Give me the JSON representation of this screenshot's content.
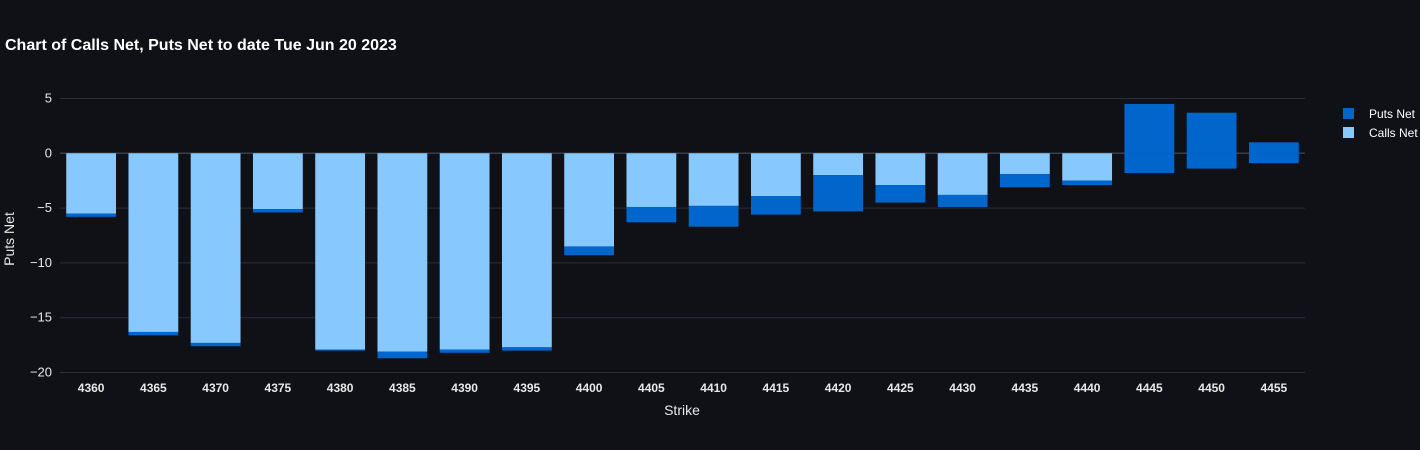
{
  "chart_data": {
    "type": "bar",
    "barmode": "stacked",
    "title": "Chart of Calls Net, Puts Net to date Tue Jun 20 2023",
    "xlabel": "Strike",
    "ylabel": "Puts Net",
    "ylim": [
      -20.5,
      6.5
    ],
    "yticks": [
      5,
      0,
      -5,
      -10,
      -15,
      -20
    ],
    "ytick_labels": [
      "5",
      "0",
      "−5",
      "−10",
      "−15",
      "−20"
    ],
    "grid": true,
    "legend_position": "top-right",
    "categories": [
      "4360",
      "4365",
      "4370",
      "4375",
      "4380",
      "4385",
      "4390",
      "4395",
      "4400",
      "4405",
      "4410",
      "4415",
      "4420",
      "4425",
      "4430",
      "4435",
      "4440",
      "4445",
      "4450",
      "4455"
    ],
    "series": [
      {
        "name": "Calls Net",
        "color": "#87c8ff",
        "values": [
          -5.5,
          -16.3,
          -17.3,
          -5.1,
          -17.9,
          -18.1,
          -17.9,
          -17.7,
          -8.5,
          -4.9,
          -4.8,
          -3.9,
          -2.0,
          -2.9,
          -3.8,
          -1.9,
          -2.5,
          0,
          0,
          0
        ]
      },
      {
        "name": "Puts Net",
        "color": "#0066cc",
        "values": [
          -0.3,
          -0.3,
          -0.3,
          -0.3,
          -0.1,
          -0.6,
          -0.3,
          -0.3,
          -0.8,
          -1.4,
          -1.9,
          -1.7,
          -3.3,
          -1.6,
          -1.1,
          -1.2,
          -0.4,
          4.5,
          3.7,
          1.0
        ]
      },
      {
        "name": "Puts Net",
        "color": "#0066cc",
        "values": [
          0,
          0,
          0,
          0,
          0,
          0,
          0,
          0,
          0,
          0,
          0,
          0,
          0,
          0,
          0,
          0,
          0,
          -1.8,
          -1.4,
          -0.9
        ]
      }
    ],
    "legend": [
      {
        "name": "Puts Net",
        "color": "#0066cc"
      },
      {
        "name": "Calls Net",
        "color": "#87c8ff"
      }
    ]
  }
}
